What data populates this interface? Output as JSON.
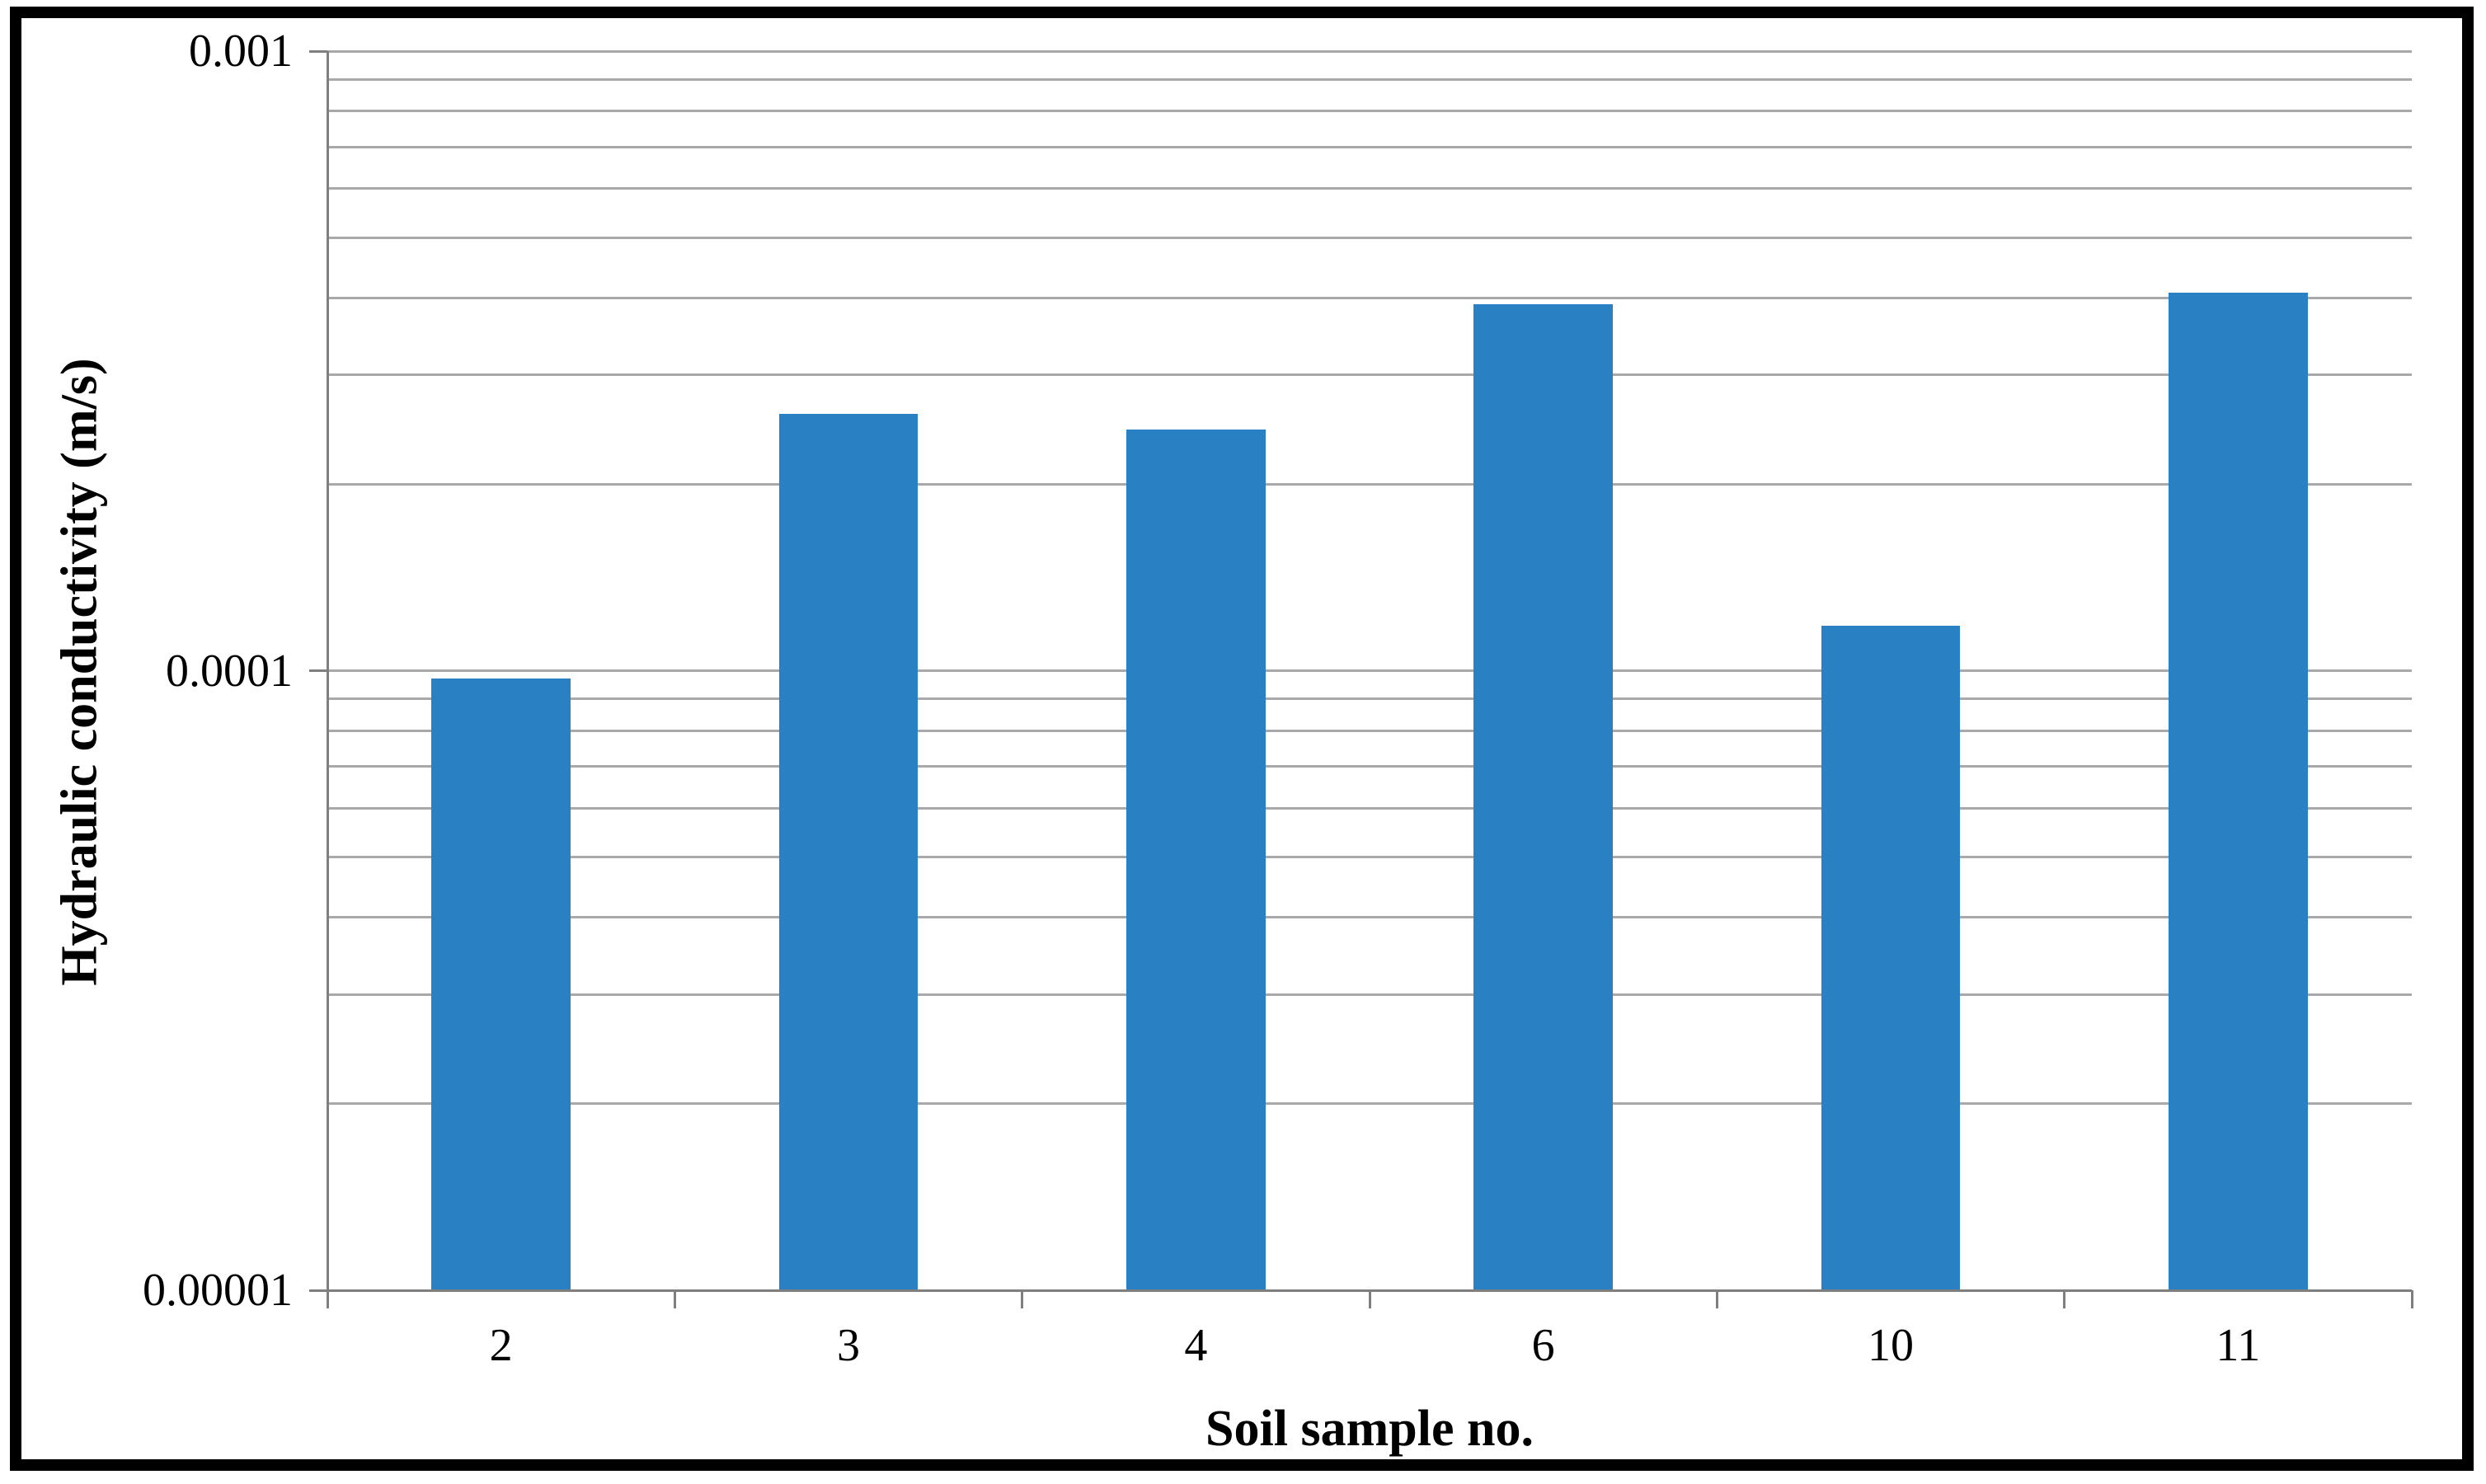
{
  "figure": {
    "background": "#ffffff",
    "frame_border_color": "#000000"
  },
  "chart_data": {
    "type": "bar",
    "title": "",
    "xlabel": "Soil sample no.",
    "ylabel": "Hydraulic conductivity (m/s)",
    "categories": [
      "2",
      "3",
      "4",
      "6",
      "10",
      "11"
    ],
    "values": [
      9.7e-05,
      0.00026,
      0.000245,
      0.00039,
      0.000118,
      0.000407
    ],
    "series_name": "Hydraulic conductivity",
    "y_scale": "log",
    "ylim": [
      1e-05,
      0.001
    ],
    "y_tick_values": [
      0.001,
      0.0001,
      1e-05
    ],
    "y_tick_labels": [
      "0.001",
      "0.0001",
      "0.00001"
    ],
    "grid": "horizontal minor log gridlines on",
    "legend": "none",
    "bar_gap_ratio": 0.6,
    "colors": {
      "bar": "#2981C4",
      "gridline": "#A9A9A9",
      "axis": "#7F7F7F",
      "text": "#000000"
    }
  }
}
